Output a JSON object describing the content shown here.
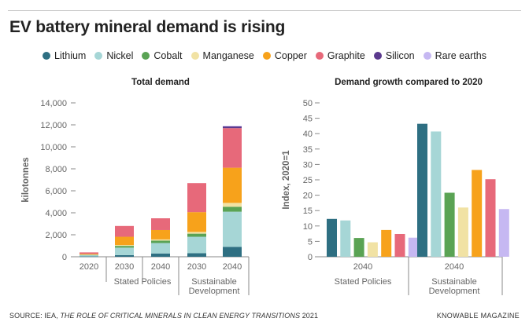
{
  "title": "EV battery mineral demand is rising",
  "legend": [
    {
      "name": "Lithium",
      "color": "#2e6f82"
    },
    {
      "name": "Nickel",
      "color": "#a6d6d6"
    },
    {
      "name": "Cobalt",
      "color": "#5aa354"
    },
    {
      "name": "Manganese",
      "color": "#f1e2a4"
    },
    {
      "name": "Copper",
      "color": "#f7a21b"
    },
    {
      "name": "Graphite",
      "color": "#e7697a"
    },
    {
      "name": "Silicon",
      "color": "#5b3a8e"
    },
    {
      "name": "Rare earths",
      "color": "#c6b8f2"
    }
  ],
  "colors": {
    "text": "#222222",
    "axis": "#888888",
    "tick": "#666666"
  },
  "chart_data": [
    {
      "type": "bar",
      "stacked": true,
      "title": "Total demand",
      "ylabel": "kilotonnes",
      "xlabel": "",
      "ylim": [
        0,
        14000
      ],
      "yticks": [
        0,
        2000,
        4000,
        6000,
        8000,
        10000,
        12000,
        14000
      ],
      "ytick_labels": [
        "0",
        "2,000",
        "4,000",
        "6,000",
        "8,000",
        "10,000",
        "12,000",
        "14,000"
      ],
      "categories": [
        "2020",
        "2030",
        "2040",
        "2030",
        "2040"
      ],
      "groups": [
        {
          "label": "Stated Policies",
          "categories": [
            1,
            2
          ]
        },
        {
          "label": "Sustainable\nDevelopment",
          "categories": [
            3,
            4
          ]
        }
      ],
      "series": [
        {
          "name": "Lithium",
          "values": [
            30,
            150,
            300,
            320,
            900
          ]
        },
        {
          "name": "Nickel",
          "values": [
            120,
            680,
            950,
            1500,
            3200
          ]
        },
        {
          "name": "Cobalt",
          "values": [
            30,
            160,
            220,
            280,
            450
          ]
        },
        {
          "name": "Manganese",
          "values": [
            20,
            80,
            110,
            160,
            350
          ]
        },
        {
          "name": "Copper",
          "values": [
            60,
            750,
            850,
            1800,
            3200
          ]
        },
        {
          "name": "Graphite",
          "values": [
            140,
            980,
            1070,
            2640,
            3600
          ]
        },
        {
          "name": "Silicon",
          "values": [
            0,
            0,
            0,
            0,
            180
          ]
        },
        {
          "name": "Rare earths",
          "values": [
            0,
            0,
            0,
            0,
            20
          ]
        }
      ]
    },
    {
      "type": "bar",
      "stacked": false,
      "title": "Demand growth compared to 2020",
      "ylabel": "Index, 2020=1",
      "xlabel": "",
      "ylim": [
        0,
        50
      ],
      "yticks": [
        0,
        5,
        10,
        15,
        20,
        25,
        30,
        35,
        40,
        45,
        50
      ],
      "ytick_labels": [
        "0",
        "5",
        "10",
        "15",
        "20",
        "25",
        "30",
        "35",
        "40",
        "45",
        "50"
      ],
      "categories": [
        "2040",
        "2040"
      ],
      "groups": [
        {
          "label": "Stated Policies",
          "categories": [
            0
          ]
        },
        {
          "label": "Sustainable\nDevelopment",
          "categories": [
            1
          ]
        }
      ],
      "series": [
        {
          "name": "Lithium",
          "values": [
            12.3,
            43.2
          ]
        },
        {
          "name": "Nickel",
          "values": [
            11.8,
            40.7
          ]
        },
        {
          "name": "Cobalt",
          "values": [
            6.1,
            20.8
          ]
        },
        {
          "name": "Manganese",
          "values": [
            4.7,
            16.0
          ]
        },
        {
          "name": "Copper",
          "values": [
            8.7,
            28.2
          ]
        },
        {
          "name": "Graphite",
          "values": [
            7.4,
            25.2
          ]
        },
        {
          "name": "Rare earths",
          "values": [
            6.2,
            15.5
          ]
        }
      ]
    }
  ],
  "footer": {
    "source_prefix": "SOURCE: IEA, ",
    "source_title": "THE ROLE OF CRITICAL MINERALS IN CLEAN ENERGY TRANSITIONS",
    "source_suffix": " 2021",
    "brand": "KNOWABLE MAGAZINE"
  }
}
